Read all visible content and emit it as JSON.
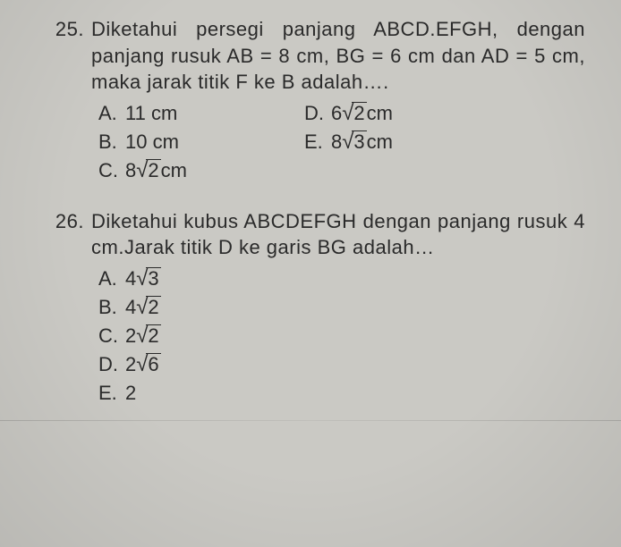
{
  "questions": [
    {
      "number": "25.",
      "text": "Diketahui persegi panjang ABCD.EFGH, dengan panjang rusuk AB = 8 cm, BG = 6 cm dan AD = 5 cm, maka jarak titik F ke B adalah….",
      "options": {
        "A": {
          "prefix": "11 cm",
          "root": ""
        },
        "B": {
          "prefix": "10 cm",
          "root": ""
        },
        "C": {
          "prefix": "8",
          "root": "2",
          "suffix": " cm"
        },
        "D": {
          "prefix": "6",
          "root": "2",
          "suffix": " cm"
        },
        "E": {
          "prefix": "8",
          "root": "3",
          "suffix": " cm"
        }
      }
    },
    {
      "number": "26.",
      "text": "Diketahui kubus ABCDEFGH dengan panjang rusuk 4 cm.Jarak titik D ke garis BG adalah…",
      "options": {
        "A": {
          "prefix": "4",
          "root": "3"
        },
        "B": {
          "prefix": "4",
          "root": "2"
        },
        "C": {
          "prefix": "2",
          "root": "2"
        },
        "D": {
          "prefix": "2",
          "root": "6"
        },
        "E": {
          "prefix": "2",
          "root": ""
        }
      }
    }
  ]
}
